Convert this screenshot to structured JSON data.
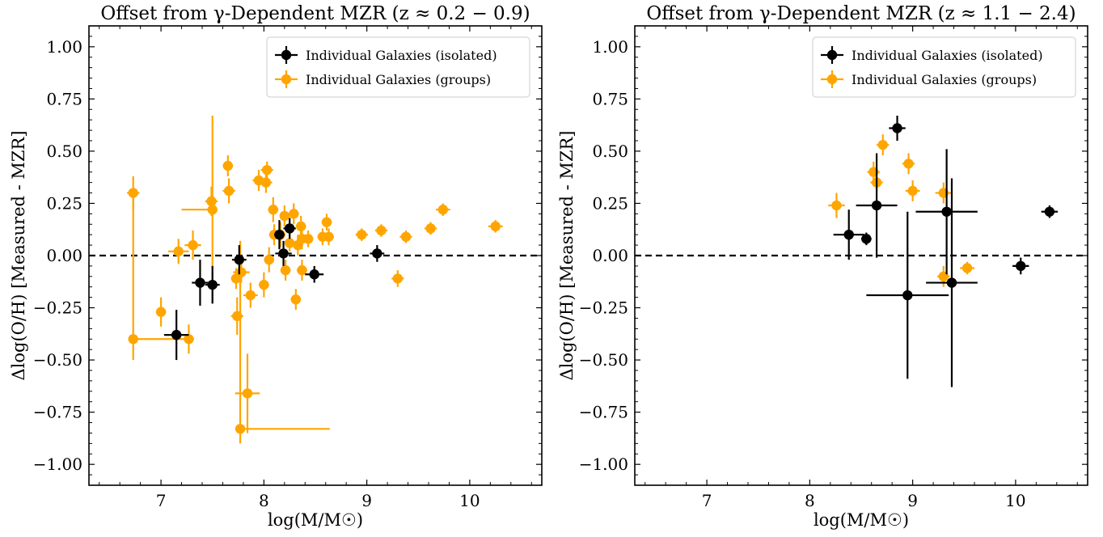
{
  "chart_data": [
    {
      "type": "scatter",
      "title": "Offset from γ-Dependent MZR (z ≈ 0.2 − 0.9)",
      "xlabel": "log(M/M☉)",
      "ylabel": "Δlog(O/H) [Measured - MZR]",
      "xlim": [
        6.3,
        10.7
      ],
      "ylim": [
        -1.1,
        1.1
      ],
      "xticks": [
        "7",
        "8",
        "9",
        "10"
      ],
      "yticks": [
        "1.00",
        "0.75",
        "0.50",
        "0.25",
        "0.00",
        "−0.25",
        "−0.50",
        "−0.75",
        "−1.00"
      ],
      "reference_line": {
        "y": 0.0,
        "style": "dashed"
      },
      "legend": {
        "placement": "top-right",
        "entries": [
          "Individual Galaxies (isolated)",
          "Individual Galaxies (groups)"
        ]
      },
      "series": [
        {
          "name": "Individual Galaxies (isolated)",
          "color": "#000000",
          "points": [
            {
              "x": 7.15,
              "y": -0.38,
              "xerr": 0.12,
              "yerr": 0.12
            },
            {
              "x": 7.38,
              "y": -0.13,
              "xerr": 0.08,
              "yerr": 0.11
            },
            {
              "x": 7.5,
              "y": -0.14,
              "xerr": 0.07,
              "yerr": 0.09
            },
            {
              "x": 7.76,
              "y": -0.02,
              "xerr": 0.07,
              "yerr": 0.07
            },
            {
              "x": 8.15,
              "y": 0.1,
              "xerr": 0.05,
              "yerr": 0.07
            },
            {
              "x": 8.19,
              "y": 0.01,
              "xerr": 0.08,
              "yerr": 0.06
            },
            {
              "x": 8.25,
              "y": 0.13,
              "xerr": 0.06,
              "yerr": 0.05
            },
            {
              "x": 8.49,
              "y": -0.09,
              "xerr": 0.09,
              "yerr": 0.04
            },
            {
              "x": 9.1,
              "y": 0.01,
              "xerr": 0.07,
              "yerr": 0.04
            }
          ]
        },
        {
          "name": "Individual Galaxies (groups)",
          "color": "#ffa500",
          "points": [
            {
              "x": 6.73,
              "y": 0.3,
              "xerr": 0.06,
              "yerr": 0.08
            },
            {
              "x": 6.73,
              "y": -0.4,
              "xerr_lo": 0.02,
              "xerr_hi": 0.55,
              "yerr_lo": 0.1,
              "yerr_hi": 0.7
            },
            {
              "x": 7.0,
              "y": -0.27,
              "xerr": 0.05,
              "yerr": 0.07
            },
            {
              "x": 7.17,
              "y": 0.02,
              "xerr": 0.1,
              "yerr": 0.06
            },
            {
              "x": 7.27,
              "y": -0.4,
              "xerr": 0.05,
              "yerr": 0.07
            },
            {
              "x": 7.31,
              "y": 0.05,
              "xerr": 0.08,
              "yerr": 0.07
            },
            {
              "x": 7.49,
              "y": 0.26,
              "xerr": 0.06,
              "yerr": 0.07
            },
            {
              "x": 7.5,
              "y": 0.22,
              "xerr_lo": 0.3,
              "xerr_hi": 0.03,
              "yerr": 0.45
            },
            {
              "x": 7.65,
              "y": 0.43,
              "xerr": 0.05,
              "yerr": 0.05
            },
            {
              "x": 7.66,
              "y": 0.31,
              "xerr": 0.06,
              "yerr": 0.06
            },
            {
              "x": 7.73,
              "y": -0.11,
              "xerr": 0.05,
              "yerr": 0.05
            },
            {
              "x": 7.74,
              "y": -0.29,
              "xerr": 0.06,
              "yerr": 0.09
            },
            {
              "x": 7.77,
              "y": -0.83,
              "xerr_lo": 0.03,
              "xerr_hi": 0.87,
              "yerr_lo": 0.07,
              "yerr_hi": 0.9
            },
            {
              "x": 7.78,
              "y": -0.08,
              "xerr": 0.08,
              "yerr": 0.05
            },
            {
              "x": 7.84,
              "y": -0.66,
              "xerr": 0.12,
              "yerr": 0.19
            },
            {
              "x": 7.87,
              "y": -0.19,
              "xerr": 0.07,
              "yerr": 0.06
            },
            {
              "x": 7.95,
              "y": 0.36,
              "xerr": 0.06,
              "yerr": 0.05
            },
            {
              "x": 8.0,
              "y": -0.14,
              "xerr": 0.05,
              "yerr": 0.06
            },
            {
              "x": 8.02,
              "y": 0.35,
              "xerr": 0.06,
              "yerr": 0.05
            },
            {
              "x": 8.03,
              "y": 0.41,
              "xerr": 0.06,
              "yerr": 0.04
            },
            {
              "x": 8.05,
              "y": -0.02,
              "xerr": 0.05,
              "yerr": 0.06
            },
            {
              "x": 8.09,
              "y": 0.22,
              "xerr": 0.05,
              "yerr": 0.06
            },
            {
              "x": 8.1,
              "y": 0.1,
              "xerr": 0.04,
              "yerr": 0.05
            },
            {
              "x": 8.16,
              "y": 0.1,
              "xerr": 0.05,
              "yerr": 0.06
            },
            {
              "x": 8.2,
              "y": 0.19,
              "xerr": 0.04,
              "yerr": 0.05
            },
            {
              "x": 8.21,
              "y": -0.07,
              "xerr": 0.05,
              "yerr": 0.05
            },
            {
              "x": 8.25,
              "y": 0.06,
              "xerr": 0.04,
              "yerr": 0.04
            },
            {
              "x": 8.29,
              "y": 0.2,
              "xerr": 0.05,
              "yerr": 0.05
            },
            {
              "x": 8.31,
              "y": -0.21,
              "xerr": 0.05,
              "yerr": 0.05
            },
            {
              "x": 8.33,
              "y": 0.05,
              "xerr": 0.05,
              "yerr": 0.05
            },
            {
              "x": 8.36,
              "y": 0.14,
              "xerr": 0.05,
              "yerr": 0.05
            },
            {
              "x": 8.37,
              "y": -0.07,
              "xerr": 0.05,
              "yerr": 0.05
            },
            {
              "x": 8.37,
              "y": 0.08,
              "xerr": 0.05,
              "yerr": 0.05
            },
            {
              "x": 8.43,
              "y": 0.08,
              "xerr": 0.05,
              "yerr": 0.04
            },
            {
              "x": 8.57,
              "y": 0.09,
              "xerr": 0.05,
              "yerr": 0.04
            },
            {
              "x": 8.61,
              "y": 0.16,
              "xerr": 0.05,
              "yerr": 0.04
            },
            {
              "x": 8.63,
              "y": 0.09,
              "xerr": 0.05,
              "yerr": 0.04
            },
            {
              "x": 8.95,
              "y": 0.1,
              "xerr": 0.06,
              "yerr": 0.03
            },
            {
              "x": 9.14,
              "y": 0.12,
              "xerr": 0.06,
              "yerr": 0.03
            },
            {
              "x": 9.3,
              "y": -0.11,
              "xerr": 0.06,
              "yerr": 0.04
            },
            {
              "x": 9.38,
              "y": 0.09,
              "xerr": 0.06,
              "yerr": 0.03
            },
            {
              "x": 9.62,
              "y": 0.13,
              "xerr": 0.06,
              "yerr": 0.03
            },
            {
              "x": 9.74,
              "y": 0.22,
              "xerr": 0.07,
              "yerr": 0.03
            },
            {
              "x": 10.25,
              "y": 0.14,
              "xerr": 0.07,
              "yerr": 0.03
            }
          ]
        }
      ]
    },
    {
      "type": "scatter",
      "title": "Offset from γ-Dependent MZR (z ≈ 1.1 − 2.4)",
      "xlabel": "log(M/M☉)",
      "ylabel": "Δlog(O/H) [Measured - MZR]",
      "xlim": [
        6.3,
        10.7
      ],
      "ylim": [
        -1.1,
        1.1
      ],
      "xticks": [
        "7",
        "8",
        "9",
        "10"
      ],
      "yticks": [
        "1.00",
        "0.75",
        "0.50",
        "0.25",
        "0.00",
        "−0.25",
        "−0.50",
        "−0.75",
        "−1.00"
      ],
      "reference_line": {
        "y": 0.0,
        "style": "dashed"
      },
      "legend": {
        "placement": "top-right",
        "entries": [
          "Individual Galaxies (isolated)",
          "Individual Galaxies (groups)"
        ]
      },
      "series": [
        {
          "name": "Individual Galaxies (isolated)",
          "color": "#000000",
          "points": [
            {
              "x": 8.38,
              "y": 0.1,
              "xerr": 0.15,
              "yerr": 0.12
            },
            {
              "x": 8.55,
              "y": 0.08,
              "xerr": 0.05,
              "yerr": 0.03
            },
            {
              "x": 8.65,
              "y": 0.24,
              "xerr": 0.2,
              "yerr": 0.25
            },
            {
              "x": 8.85,
              "y": 0.61,
              "xerr": 0.08,
              "yerr": 0.06
            },
            {
              "x": 8.95,
              "y": -0.19,
              "xerr": 0.4,
              "yerr": 0.4
            },
            {
              "x": 9.33,
              "y": 0.21,
              "xerr": 0.3,
              "yerr": 0.3
            },
            {
              "x": 9.38,
              "y": -0.13,
              "xerr": 0.25,
              "yerr": 0.5
            },
            {
              "x": 10.05,
              "y": -0.05,
              "xerr": 0.08,
              "yerr": 0.04
            },
            {
              "x": 10.33,
              "y": 0.21,
              "xerr": 0.08,
              "yerr": 0.03
            }
          ]
        },
        {
          "name": "Individual Galaxies (groups)",
          "color": "#ffa500",
          "points": [
            {
              "x": 8.26,
              "y": 0.24,
              "xerr": 0.08,
              "yerr": 0.06
            },
            {
              "x": 8.62,
              "y": 0.4,
              "xerr": 0.06,
              "yerr": 0.05
            },
            {
              "x": 8.65,
              "y": 0.35,
              "xerr": 0.06,
              "yerr": 0.05
            },
            {
              "x": 8.71,
              "y": 0.53,
              "xerr": 0.06,
              "yerr": 0.05
            },
            {
              "x": 8.96,
              "y": 0.44,
              "xerr": 0.06,
              "yerr": 0.05
            },
            {
              "x": 9.0,
              "y": 0.31,
              "xerr": 0.07,
              "yerr": 0.05
            },
            {
              "x": 9.3,
              "y": 0.3,
              "xerr": 0.08,
              "yerr": 0.05
            },
            {
              "x": 9.3,
              "y": -0.1,
              "xerr": 0.06,
              "yerr": 0.05
            },
            {
              "x": 9.53,
              "y": -0.06,
              "xerr": 0.07,
              "yerr": 0.03
            }
          ]
        }
      ]
    }
  ]
}
